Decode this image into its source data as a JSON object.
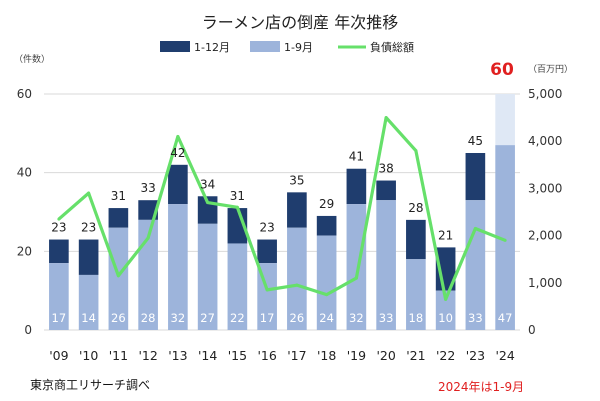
{
  "chart_data": {
    "type": "bar",
    "title": "ラーメン店の倒産 年次推移",
    "left_axis_unit": "（件数）",
    "right_axis_unit": "（百万円）",
    "categories": [
      "'09",
      "'10",
      "'11",
      "'12",
      "'13",
      "'14",
      "'15",
      "'16",
      "'17",
      "'18",
      "'19",
      "'20",
      "'21",
      "'22",
      "'23",
      "'24"
    ],
    "series": [
      {
        "name": "1-12月",
        "color": "#1f3d6e",
        "values": [
          23,
          23,
          31,
          33,
          42,
          34,
          31,
          23,
          35,
          29,
          41,
          38,
          28,
          21,
          45,
          null
        ]
      },
      {
        "name": "1-9月",
        "color": "#9db4db",
        "values": [
          17,
          14,
          26,
          28,
          32,
          27,
          22,
          17,
          26,
          24,
          32,
          33,
          18,
          10,
          33,
          47
        ]
      },
      {
        "name": "負債総額",
        "color": "#66e06a",
        "type": "line",
        "axis": "right",
        "values": [
          2350,
          2900,
          1150,
          1950,
          4100,
          2700,
          2600,
          850,
          950,
          750,
          1100,
          4500,
          3800,
          650,
          2150,
          1900
        ]
      }
    ],
    "projected_2024_total": 60,
    "projected_color": "#dfe8f5",
    "left_ylim": [
      0,
      60
    ],
    "left_ticks": [
      "0",
      "20",
      "40",
      "60"
    ],
    "right_ylim": [
      0,
      5000
    ],
    "right_ticks": [
      "0",
      "1,000",
      "2,000",
      "3,000",
      "4,000",
      "5,000"
    ],
    "legend_position": "top",
    "source": "東京商工リサーチ調べ",
    "note": "2024年は1-9月"
  }
}
